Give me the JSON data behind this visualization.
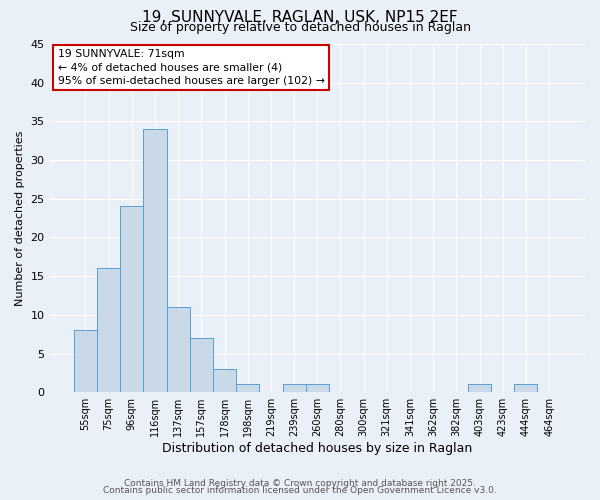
{
  "title": "19, SUNNYVALE, RAGLAN, USK, NP15 2EF",
  "subtitle": "Size of property relative to detached houses in Raglan",
  "xlabel": "Distribution of detached houses by size in Raglan",
  "ylabel": "Number of detached properties",
  "bar_color": "#c9d9e8",
  "bar_edge_color": "#5a9fd4",
  "background_color": "#eaf0f7",
  "grid_color": "#ffffff",
  "categories": [
    "55sqm",
    "75sqm",
    "96sqm",
    "116sqm",
    "137sqm",
    "157sqm",
    "178sqm",
    "198sqm",
    "219sqm",
    "239sqm",
    "260sqm",
    "280sqm",
    "300sqm",
    "321sqm",
    "341sqm",
    "362sqm",
    "382sqm",
    "403sqm",
    "423sqm",
    "444sqm",
    "464sqm"
  ],
  "values": [
    8,
    16,
    24,
    34,
    11,
    7,
    3,
    1,
    0,
    1,
    1,
    0,
    0,
    0,
    0,
    0,
    0,
    1,
    0,
    1,
    0
  ],
  "ylim": [
    0,
    45
  ],
  "yticks": [
    0,
    5,
    10,
    15,
    20,
    25,
    30,
    35,
    40,
    45
  ],
  "annotation_box_text": "19 SUNNYVALE: 71sqm\n← 4% of detached houses are smaller (4)\n95% of semi-detached houses are larger (102) →",
  "annotation_box_color": "#ffffff",
  "annotation_box_edge_color": "#cc0000",
  "footer_line1": "Contains HM Land Registry data © Crown copyright and database right 2025.",
  "footer_line2": "Contains public sector information licensed under the Open Government Licence v3.0."
}
